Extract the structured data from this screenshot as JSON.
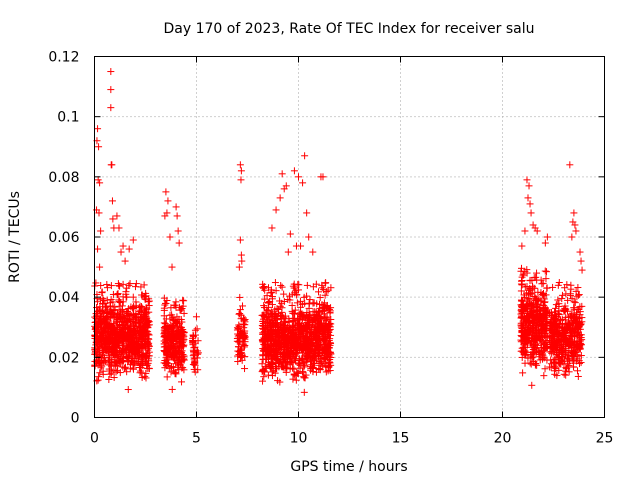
{
  "chart_data": {
    "type": "scatter",
    "title": "Day 170 of 2023, Rate Of TEC Index for receiver salu",
    "xlabel": "GPS time / hours",
    "ylabel": "ROTI / TECUs",
    "xlim": [
      0,
      25
    ],
    "ylim": [
      0,
      0.12
    ],
    "xticks": [
      "0",
      "5",
      "10",
      "15",
      "20",
      "25"
    ],
    "yticks": [
      "0",
      "0.02",
      "0.04",
      "0.06",
      "0.08",
      "0.1",
      "0.12"
    ],
    "grid": true,
    "marker": "+",
    "color": "#ff0000",
    "data_clusters": [
      {
        "x_range": [
          0.0,
          2.7
        ],
        "y_range": [
          0.007,
          0.045
        ],
        "n": 900
      },
      {
        "x_range": [
          3.4,
          4.4
        ],
        "y_range": [
          0.008,
          0.04
        ],
        "n": 300
      },
      {
        "x_range": [
          4.8,
          5.1
        ],
        "y_range": [
          0.011,
          0.035
        ],
        "n": 40
      },
      {
        "x_range": [
          7.0,
          7.4
        ],
        "y_range": [
          0.012,
          0.04
        ],
        "n": 80
      },
      {
        "x_range": [
          8.2,
          11.6
        ],
        "y_range": [
          0.006,
          0.045
        ],
        "n": 1100
      },
      {
        "x_range": [
          20.9,
          22.2
        ],
        "y_range": [
          0.009,
          0.05
        ],
        "n": 450
      },
      {
        "x_range": [
          22.3,
          23.9
        ],
        "y_range": [
          0.008,
          0.045
        ],
        "n": 450
      }
    ],
    "outliers": [
      [
        0.12,
        0.092
      ],
      [
        0.2,
        0.09
      ],
      [
        0.15,
        0.096
      ],
      [
        0.18,
        0.079
      ],
      [
        0.25,
        0.078
      ],
      [
        0.1,
        0.069
      ],
      [
        0.22,
        0.068
      ],
      [
        0.3,
        0.062
      ],
      [
        0.15,
        0.056
      ],
      [
        0.25,
        0.05
      ],
      [
        0.8,
        0.115
      ],
      [
        0.8,
        0.109
      ],
      [
        0.8,
        0.103
      ],
      [
        0.82,
        0.084
      ],
      [
        0.85,
        0.084
      ],
      [
        0.88,
        0.072
      ],
      [
        0.9,
        0.066
      ],
      [
        0.95,
        0.063
      ],
      [
        1.1,
        0.067
      ],
      [
        1.2,
        0.063
      ],
      [
        1.3,
        0.055
      ],
      [
        1.4,
        0.057
      ],
      [
        1.5,
        0.052
      ],
      [
        1.7,
        0.056
      ],
      [
        1.9,
        0.059
      ],
      [
        3.5,
        0.075
      ],
      [
        3.6,
        0.072
      ],
      [
        3.55,
        0.068
      ],
      [
        3.45,
        0.067
      ],
      [
        3.7,
        0.06
      ],
      [
        4.0,
        0.07
      ],
      [
        4.05,
        0.067
      ],
      [
        4.1,
        0.062
      ],
      [
        4.15,
        0.058
      ],
      [
        3.8,
        0.05
      ],
      [
        7.15,
        0.084
      ],
      [
        7.2,
        0.082
      ],
      [
        7.18,
        0.079
      ],
      [
        7.15,
        0.059
      ],
      [
        7.2,
        0.054
      ],
      [
        7.22,
        0.052
      ],
      [
        7.1,
        0.05
      ],
      [
        8.7,
        0.063
      ],
      [
        8.9,
        0.069
      ],
      [
        9.1,
        0.073
      ],
      [
        9.2,
        0.081
      ],
      [
        9.3,
        0.076
      ],
      [
        9.4,
        0.077
      ],
      [
        9.6,
        0.061
      ],
      [
        9.8,
        0.082
      ],
      [
        10.0,
        0.08
      ],
      [
        10.2,
        0.078
      ],
      [
        10.3,
        0.087
      ],
      [
        10.4,
        0.068
      ],
      [
        10.5,
        0.06
      ],
      [
        10.7,
        0.055
      ],
      [
        11.1,
        0.08
      ],
      [
        11.2,
        0.08
      ],
      [
        9.9,
        0.057
      ],
      [
        10.1,
        0.057
      ],
      [
        9.5,
        0.055
      ],
      [
        21.2,
        0.079
      ],
      [
        21.3,
        0.077
      ],
      [
        21.25,
        0.073
      ],
      [
        21.35,
        0.071
      ],
      [
        21.4,
        0.068
      ],
      [
        21.5,
        0.064
      ],
      [
        21.6,
        0.063
      ],
      [
        22.2,
        0.06
      ],
      [
        22.1,
        0.058
      ],
      [
        21.7,
        0.062
      ],
      [
        20.95,
        0.057
      ],
      [
        21.1,
        0.062
      ],
      [
        23.3,
        0.084
      ],
      [
        23.5,
        0.068
      ],
      [
        23.45,
        0.065
      ],
      [
        23.55,
        0.064
      ],
      [
        23.6,
        0.062
      ],
      [
        23.4,
        0.06
      ],
      [
        23.8,
        0.055
      ],
      [
        23.85,
        0.052
      ],
      [
        23.9,
        0.049
      ]
    ]
  }
}
